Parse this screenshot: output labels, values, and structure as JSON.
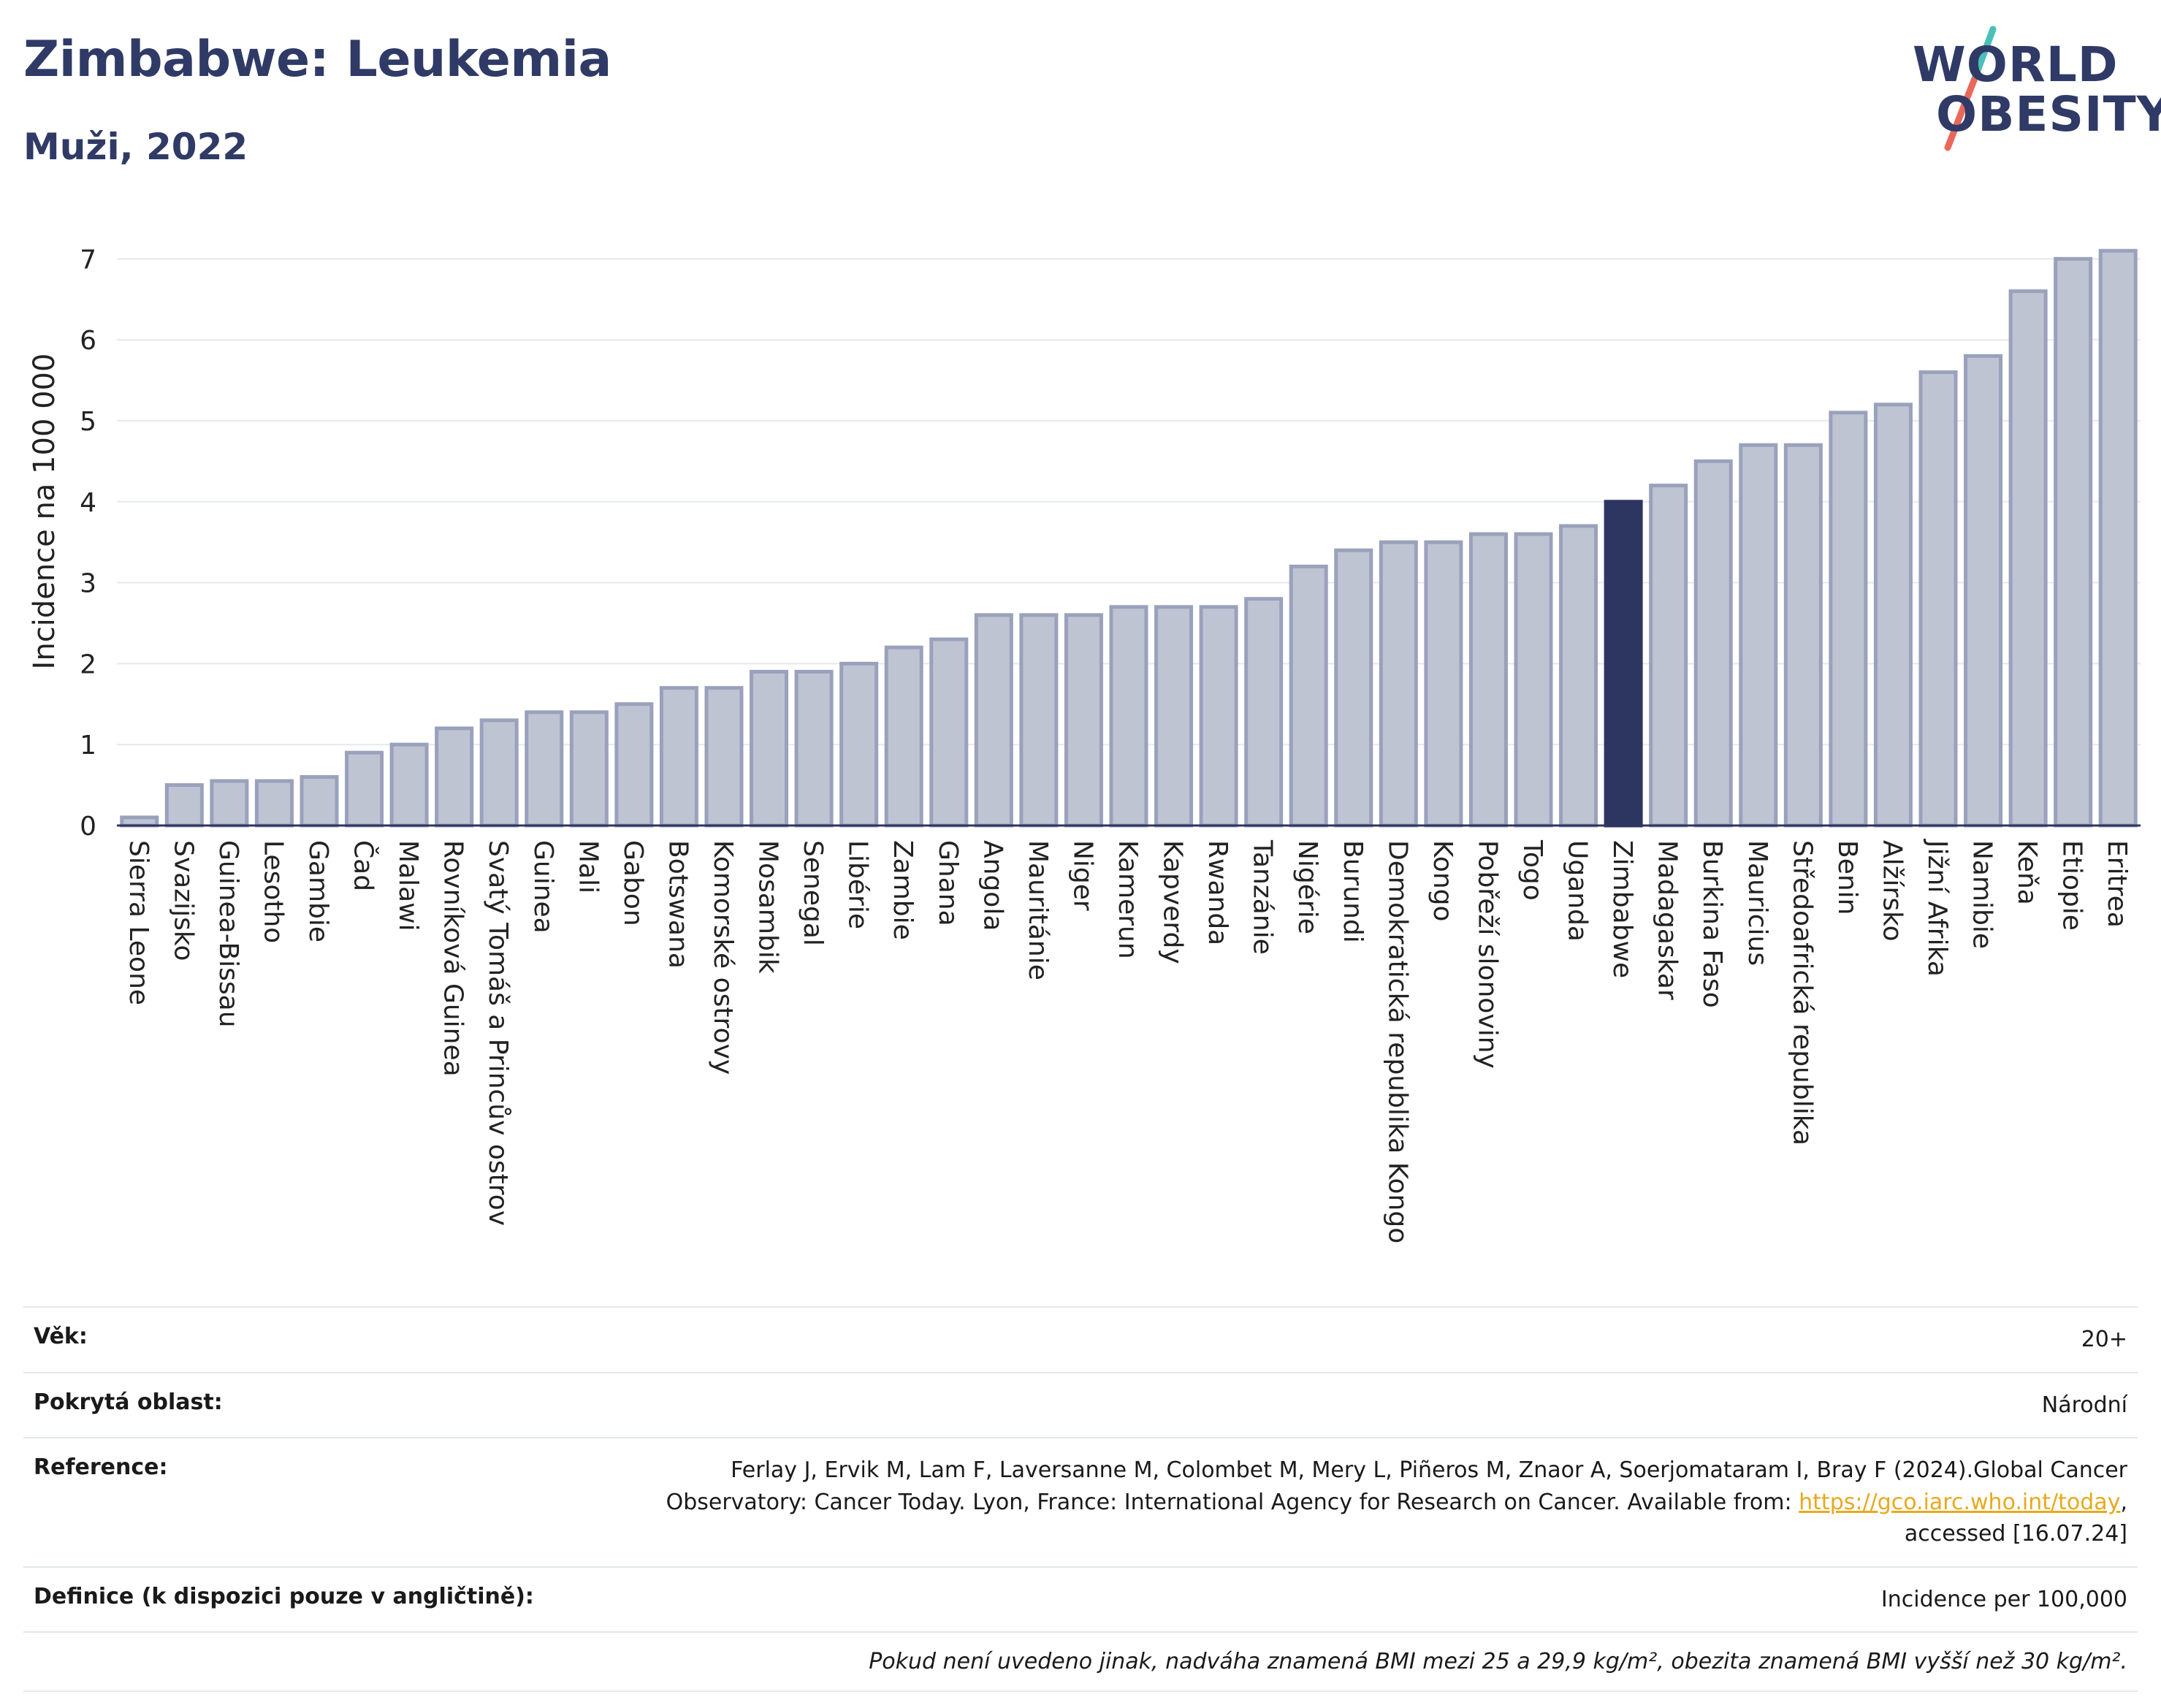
{
  "header": {
    "title": "Zimbabwe: Leukemia",
    "subtitle": "Muži, 2022"
  },
  "logo": {
    "line1": "WORLD",
    "line2": "OBESITY",
    "colors": {
      "text": "#2f3a66",
      "slash_top": "#4bbfb9",
      "slash_bottom": "#e9685b"
    }
  },
  "colors": {
    "bar_fill": "#bfc4d2",
    "bar_stroke": "#9aa1bc",
    "highlight_fill": "#2d3561",
    "axis_text": "#222222",
    "grid": "#e6e8ee",
    "title": "#2f3a66"
  },
  "chart_data": {
    "type": "bar",
    "title": "Zimbabwe: Leukemia",
    "subtitle": "Muži, 2022",
    "xlabel": "",
    "ylabel": "Incidence na 100 000",
    "ylim": [
      0,
      7.4
    ],
    "yticks": [
      0,
      1,
      2,
      3,
      4,
      5,
      6,
      7
    ],
    "grid": true,
    "highlight": "Zimbabwe",
    "categories": [
      "Sierra Leone",
      "Svazijsko",
      "Guinea-Bissau",
      "Lesotho",
      "Gambie",
      "Čad",
      "Malawi",
      "Rovníková Guinea",
      "Svatý Tomáš a Princův ostrov",
      "Guinea",
      "Mali",
      "Gabon",
      "Botswana",
      "Komorské ostrovy",
      "Mosambik",
      "Senegal",
      "Libérie",
      "Zambie",
      "Ghana",
      "Angola",
      "Mauritánie",
      "Niger",
      "Kamerun",
      "Kapverdy",
      "Rwanda",
      "Tanzánie",
      "Nigérie",
      "Burundi",
      "Demokratická republika Kongo",
      "Kongo",
      "Pobřeží slonoviny",
      "Togo",
      "Uganda",
      "Zimbabwe",
      "Madagaskar",
      "Burkina Faso",
      "Mauricius",
      "Středoafrická republika",
      "Benin",
      "Alžírsko",
      "Jižní Afrika",
      "Namibie",
      "Keňa",
      "Etiopie",
      "Eritrea"
    ],
    "values": [
      0.1,
      0.5,
      0.55,
      0.55,
      0.6,
      0.9,
      1.0,
      1.2,
      1.3,
      1.4,
      1.4,
      1.5,
      1.7,
      1.7,
      1.9,
      1.9,
      2.0,
      2.2,
      2.3,
      2.6,
      2.6,
      2.6,
      2.7,
      2.7,
      2.7,
      2.8,
      3.2,
      3.4,
      3.5,
      3.5,
      3.6,
      3.6,
      3.7,
      4.0,
      4.2,
      4.5,
      4.7,
      4.7,
      5.1,
      5.2,
      5.6,
      5.8,
      6.6,
      7.0,
      7.1
    ]
  },
  "info": {
    "rows": [
      {
        "label": "Věk:",
        "value": "20+"
      },
      {
        "label": "Pokrytá oblast:",
        "value": "Národní"
      },
      {
        "label": "Reference:",
        "value_before": "Ferlay J, Ervik M, Lam F, Laversanne M, Colombet M, Mery L, Piñeros M, Znaor A, Soerjomataram I, Bray F (2024).Global Cancer Observatory: Cancer Today. Lyon, France: International Agency for Research on Cancer. Available from: ",
        "link": "https://gco.iarc.who.int/today",
        "value_after": ", accessed [16.07.24]"
      },
      {
        "label": "Definice (k dispozici pouze v angličtině):",
        "value": "Incidence per 100,000"
      }
    ],
    "note": "Pokud není uvedeno jinak, nadváha znamená BMI mezi 25 a 29,9 kg/m², obezita znamená BMI vyšší než 30 kg/m²."
  }
}
